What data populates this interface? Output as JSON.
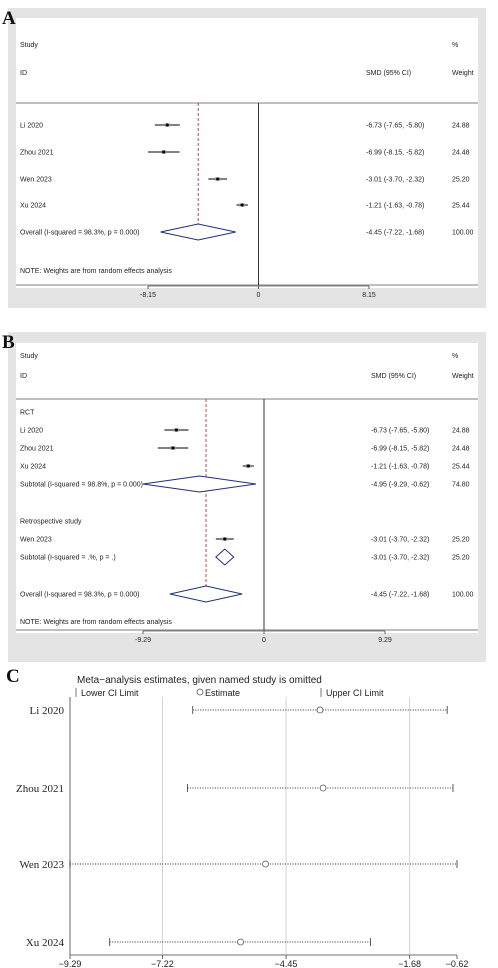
{
  "chart_data": [
    {
      "panel": "A",
      "type": "forest",
      "header": {
        "col1": "Study",
        "col1b": "ID",
        "col2": "SMD (95% CI)",
        "col3a": "%",
        "col3": "Weight"
      },
      "rows": [
        {
          "label": "Li 2020",
          "est": -6.73,
          "lo": -7.65,
          "hi": -5.8,
          "ci_text": "-6.73 (-7.65, -5.80)",
          "weight": "24.88"
        },
        {
          "label": "Zhou 2021",
          "est": -6.99,
          "lo": -8.15,
          "hi": -5.82,
          "ci_text": "-6.99 (-8.15, -5.82)",
          "weight": "24.48"
        },
        {
          "label": "Wen 2023",
          "est": -3.01,
          "lo": -3.7,
          "hi": -2.32,
          "ci_text": "-3.01 (-3.70, -2.32)",
          "weight": "25.20"
        },
        {
          "label": "Xu 2024",
          "est": -1.21,
          "lo": -1.63,
          "hi": -0.78,
          "ci_text": "-1.21 (-1.63, -0.78)",
          "weight": "25.44"
        }
      ],
      "overall": {
        "label": "Overall  (I-squared = 98.3%, p = 0.000)",
        "est": -4.45,
        "lo": -7.22,
        "hi": -1.68,
        "ci_text": "-4.45 (-7.22, -1.68)",
        "weight": "100.00"
      },
      "note": "NOTE: Weights are from random effects analysis",
      "xticks": [
        {
          "value": -8.15,
          "label": "-8.15"
        },
        {
          "value": 0,
          "label": "0"
        },
        {
          "value": 8.15,
          "label": "8.15"
        }
      ]
    },
    {
      "panel": "B",
      "type": "forest",
      "header": {
        "col1": "Study",
        "col1b": "ID",
        "col2": "SMD (95% CI)",
        "col3a": "%",
        "col3": "Weight"
      },
      "groups": [
        {
          "title": "RCT",
          "rows": [
            {
              "label": "Li 2020",
              "est": -6.73,
              "lo": -7.65,
              "hi": -5.8,
              "ci_text": "-6.73 (-7.65, -5.80)",
              "weight": "24.88"
            },
            {
              "label": "Zhou 2021",
              "est": -6.99,
              "lo": -8.15,
              "hi": -5.82,
              "ci_text": "-6.99 (-8.15, -5.82)",
              "weight": "24.48"
            },
            {
              "label": "Xu 2024",
              "est": -1.21,
              "lo": -1.63,
              "hi": -0.78,
              "ci_text": "-1.21 (-1.63, -0.78)",
              "weight": "25.44"
            }
          ],
          "subtotal": {
            "label": "Subtotal  (I-squared = 98.8%, p = 0.000)",
            "est": -4.95,
            "lo": -9.29,
            "hi": -0.62,
            "ci_text": "-4.95 (-9.29, -0.62)",
            "weight": "74.80"
          }
        },
        {
          "title": "Retrospective study",
          "rows": [
            {
              "label": "Wen 2023",
              "est": -3.01,
              "lo": -3.7,
              "hi": -2.32,
              "ci_text": "-3.01 (-3.70, -2.32)",
              "weight": "25.20"
            }
          ],
          "subtotal": {
            "label": "Subtotal  (I-squared = .%, p = .)",
            "est": -3.01,
            "lo": -3.7,
            "hi": -2.32,
            "ci_text": "-3.01 (-3.70, -2.32)",
            "weight": "25.20"
          }
        }
      ],
      "overall": {
        "label": "Overall  (I-squared = 98.3%, p = 0.000)",
        "est": -4.45,
        "lo": -7.22,
        "hi": -1.68,
        "ci_text": "-4.45 (-7.22, -1.68)",
        "weight": "100.00"
      },
      "note": "NOTE: Weights are from random effects analysis",
      "xticks": [
        {
          "value": -9.29,
          "label": "-9.29"
        },
        {
          "value": 0,
          "label": "0"
        },
        {
          "value": 9.29,
          "label": "9.29"
        }
      ]
    },
    {
      "panel": "C",
      "type": "sensitivity",
      "title": "Meta−analysis estimates, given named study is omitted",
      "legend": {
        "lower": "Lower CI Limit",
        "estimate": "Estimate",
        "upper": "Upper CI Limit"
      },
      "rows": [
        {
          "label": "Li 2020",
          "est": -3.69,
          "lo": -6.54,
          "hi": -0.84
        },
        {
          "label": "Zhou 2021",
          "est": -3.62,
          "lo": -6.66,
          "hi": -0.71
        },
        {
          "label": "Wen 2023",
          "est": -4.91,
          "lo": -9.29,
          "hi": -0.62
        },
        {
          "label": "Xu 2024",
          "est": -5.47,
          "lo": -8.4,
          "hi": -2.56
        }
      ],
      "xlim": [
        -9.29,
        -0.62
      ],
      "xticks": [
        {
          "value": -9.29,
          "label": "−9.29"
        },
        {
          "value": -7.22,
          "label": "−7.22"
        },
        {
          "value": -4.45,
          "label": "−4.45"
        },
        {
          "value": -1.68,
          "label": "−1.68"
        },
        {
          "value": -0.62,
          "label": "−0.62"
        }
      ],
      "reference_lines": [
        -7.22,
        -4.45,
        -1.68
      ]
    }
  ]
}
